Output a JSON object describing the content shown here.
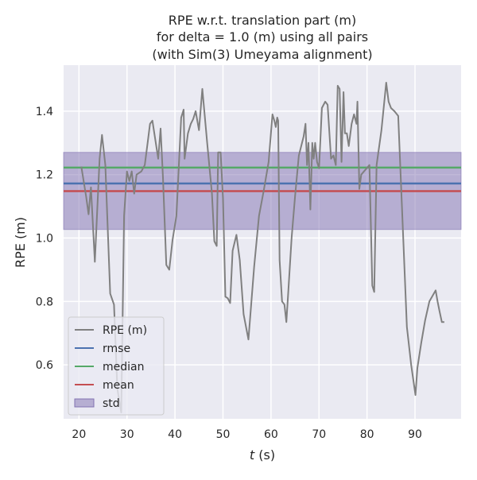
{
  "chart_data": {
    "type": "line",
    "title": [
      "RPE w.r.t. translation part (m)",
      "for delta = 1.0 (m) using all pairs",
      "(with Sim(3) Umeyama alignment)"
    ],
    "xlabel_italic": "t",
    "xlabel_unit": " (s)",
    "ylabel": "RPE (m)",
    "xlim": [
      16.8,
      99.6
    ],
    "ylim": [
      0.43,
      1.545
    ],
    "xticks": [
      20,
      30,
      40,
      50,
      60,
      70,
      80,
      90
    ],
    "yticks": [
      0.6,
      0.8,
      1.0,
      1.2,
      1.4
    ],
    "ytick_labels": [
      "0.6",
      "0.8",
      "1.0",
      "1.2",
      "1.4"
    ],
    "stats": {
      "rmse": 1.172,
      "median": 1.222,
      "mean": 1.148,
      "std_low": 1.027,
      "std_high": 1.27
    },
    "legend": [
      "RPE (m)",
      "rmse",
      "median",
      "mean",
      "std"
    ],
    "colors": {
      "rpe": "#808080",
      "rmse": "#4c72b0",
      "median": "#55a868",
      "mean": "#c44e52",
      "std": "#8172b2"
    },
    "series": {
      "name": "RPE (m)",
      "x": [
        20.5,
        21.5,
        22.0,
        22.5,
        23.3,
        24.3,
        24.8,
        25.5,
        26.5,
        27.3,
        28.0,
        28.8,
        29.4,
        30.0,
        30.5,
        31.0,
        31.5,
        32.0,
        33.0,
        33.7,
        34.3,
        34.8,
        35.3,
        36.5,
        37.0,
        37.5,
        38.2,
        38.8,
        39.5,
        40.3,
        40.8,
        41.3,
        41.8,
        42.0,
        42.7,
        43.3,
        43.8,
        44.3,
        45.0,
        45.7,
        46.7,
        47.7,
        48.2,
        48.7,
        49.0,
        49.5,
        50.0,
        50.5,
        51.0,
        51.5,
        52.0,
        52.8,
        53.5,
        54.3,
        55.3,
        56.5,
        57.5,
        58.5,
        59.5,
        60.3,
        60.7,
        61.0,
        61.3,
        61.5,
        61.8,
        62.3,
        62.8,
        63.2,
        63.6,
        64.3,
        65.0,
        65.8,
        66.8,
        67.2,
        67.5,
        67.8,
        68.2,
        68.6,
        68.9,
        69.2,
        69.6,
        70.0,
        70.6,
        71.3,
        71.8,
        72.5,
        73.0,
        73.5,
        73.9,
        74.3,
        74.7,
        75.1,
        75.4,
        75.8,
        76.2,
        76.8,
        77.3,
        77.8,
        78.0,
        78.4,
        78.8,
        80.5,
        81.1,
        81.5,
        82.0,
        83.0,
        84.0,
        84.5,
        85.0,
        85.7,
        86.5,
        88.3,
        89.2,
        90.1,
        90.5,
        91.3,
        92.1,
        93.0,
        94.3,
        94.7,
        95.1,
        95.6,
        96.1
      ],
      "y": [
        1.225,
        1.13,
        1.075,
        1.16,
        0.925,
        1.25,
        1.325,
        1.23,
        0.825,
        0.79,
        0.525,
        0.45,
        1.07,
        1.21,
        1.18,
        1.21,
        1.14,
        1.2,
        1.21,
        1.23,
        1.3,
        1.36,
        1.37,
        1.25,
        1.345,
        1.19,
        0.915,
        0.9,
        0.995,
        1.07,
        1.225,
        1.38,
        1.405,
        1.25,
        1.33,
        1.36,
        1.375,
        1.4,
        1.34,
        1.47,
        1.3,
        1.14,
        0.99,
        0.975,
        1.27,
        1.27,
        1.125,
        0.815,
        0.81,
        0.795,
        0.96,
        1.01,
        0.93,
        0.76,
        0.68,
        0.91,
        1.07,
        1.15,
        1.24,
        1.39,
        1.37,
        1.35,
        1.38,
        1.37,
        0.93,
        0.8,
        0.79,
        0.735,
        0.83,
        1.0,
        1.13,
        1.26,
        1.32,
        1.36,
        1.23,
        1.3,
        1.09,
        1.3,
        1.25,
        1.3,
        1.24,
        1.22,
        1.41,
        1.43,
        1.42,
        1.25,
        1.26,
        1.23,
        1.48,
        1.47,
        1.24,
        1.46,
        1.33,
        1.33,
        1.29,
        1.36,
        1.39,
        1.36,
        1.43,
        1.155,
        1.2,
        1.23,
        0.85,
        0.83,
        1.23,
        1.34,
        1.49,
        1.43,
        1.41,
        1.4,
        1.385,
        0.72,
        0.6,
        0.505,
        0.59,
        0.67,
        0.74,
        0.8,
        0.835,
        0.8,
        0.77,
        0.735,
        0.735
      ]
    }
  }
}
